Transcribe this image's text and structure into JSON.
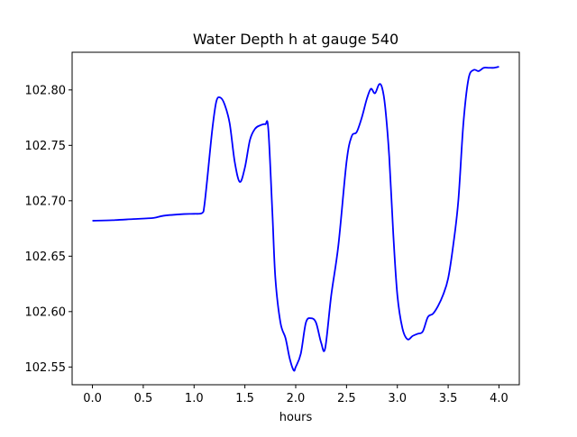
{
  "chart_data": {
    "type": "line",
    "title": "Water Depth h at gauge 540",
    "xlabel": "hours",
    "ylabel": "",
    "xlim": [
      -0.2,
      4.2
    ],
    "ylim": [
      102.534,
      102.834
    ],
    "grid": false,
    "x_ticks": [
      0.0,
      0.5,
      1.0,
      1.5,
      2.0,
      2.5,
      3.0,
      3.5,
      4.0
    ],
    "x_tick_labels": [
      "0.0",
      "0.5",
      "1.0",
      "1.5",
      "2.0",
      "2.5",
      "3.0",
      "3.5",
      "4.0"
    ],
    "y_ticks": [
      102.55,
      102.6,
      102.65,
      102.7,
      102.75,
      102.8
    ],
    "y_tick_labels": [
      "102.55",
      "102.60",
      "102.65",
      "102.70",
      "102.75",
      "102.80"
    ],
    "series": [
      {
        "color": "#0000ff",
        "x": [
          0.0,
          0.2,
          0.4,
          0.6,
          0.7,
          0.9,
          1.0,
          1.08,
          1.1,
          1.13,
          1.18,
          1.22,
          1.26,
          1.3,
          1.35,
          1.4,
          1.45,
          1.5,
          1.55,
          1.6,
          1.65,
          1.7,
          1.73,
          1.77,
          1.8,
          1.85,
          1.9,
          1.94,
          1.98,
          2.0,
          2.05,
          2.1,
          2.15,
          2.2,
          2.25,
          2.29,
          2.35,
          2.42,
          2.5,
          2.55,
          2.6,
          2.65,
          2.7,
          2.74,
          2.78,
          2.82,
          2.85,
          2.88,
          2.92,
          2.96,
          3.0,
          3.05,
          3.1,
          3.15,
          3.2,
          3.25,
          3.3,
          3.35,
          3.4,
          3.45,
          3.5,
          3.55,
          3.6,
          3.65,
          3.7,
          3.75,
          3.8,
          3.85,
          3.9,
          3.95,
          4.0
        ],
        "y": [
          102.682,
          102.6825,
          102.6835,
          102.6845,
          102.6865,
          102.688,
          102.6882,
          102.689,
          102.695,
          102.72,
          102.765,
          102.79,
          102.793,
          102.787,
          102.77,
          102.735,
          102.717,
          102.73,
          102.755,
          102.765,
          102.768,
          102.769,
          102.765,
          102.69,
          102.63,
          102.59,
          102.576,
          102.558,
          102.547,
          102.55,
          102.562,
          102.59,
          102.594,
          102.59,
          102.572,
          102.567,
          102.615,
          102.66,
          102.735,
          102.758,
          102.762,
          102.775,
          102.792,
          102.801,
          102.797,
          102.805,
          102.802,
          102.785,
          102.74,
          102.67,
          102.615,
          102.585,
          102.575,
          102.578,
          102.58,
          102.582,
          102.595,
          102.598,
          102.605,
          102.615,
          102.63,
          102.66,
          102.7,
          102.77,
          102.81,
          102.818,
          102.817,
          102.82,
          102.82,
          102.82,
          102.821
        ]
      }
    ]
  }
}
